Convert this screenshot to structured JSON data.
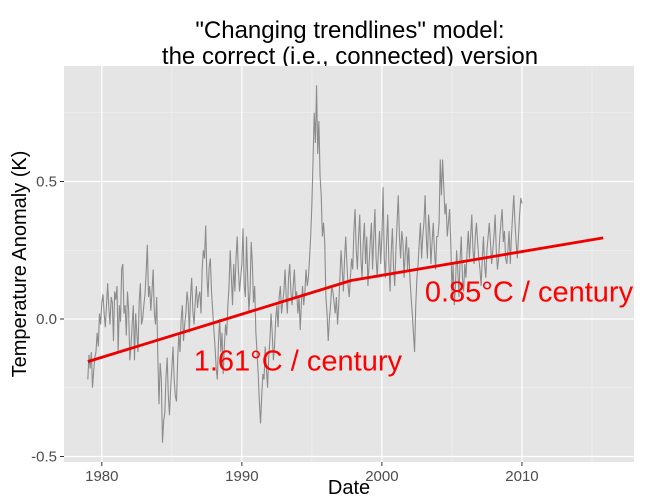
{
  "colors": {
    "panel_background": "#e5e5e5",
    "grid_major": "#ffffff",
    "grid_minor": "#f2f2f2",
    "series_line": "#8c8c8c",
    "trend_line": "#ee0000",
    "annotation_text": "#ff0000"
  },
  "chart_data": {
    "type": "line",
    "title_line1": "\"Changing trendlines\" model:",
    "title_line2": "the correct (i.e., connected) version",
    "xlabel": "Date",
    "ylabel": "Temperature Anomaly (K)",
    "xlim": [
      1977.3,
      2018.0
    ],
    "ylim": [
      -0.52,
      0.92
    ],
    "x_ticks": [
      1980,
      1990,
      2000,
      2010
    ],
    "x_tick_labels": [
      "1980",
      "1990",
      "2000",
      "2010"
    ],
    "y_ticks": [
      -0.5,
      0.0,
      0.5
    ],
    "y_tick_labels": [
      "-0.5",
      "0.0",
      "0.5"
    ],
    "grid": true,
    "series": [
      {
        "values_description_free": true,
        "x_start": 1979.0,
        "x_step": 0.0833333,
        "values": [
          -0.22,
          -0.13,
          -0.18,
          -0.12,
          -0.25,
          -0.19,
          -0.14,
          -0.12,
          -0.05,
          -0.1,
          0.02,
          -0.02,
          0.06,
          0.09,
          0.02,
          -0.03,
          0.05,
          0.13,
          0.04,
          -0.02,
          0.08,
          0.06,
          -0.08,
          0.1,
          0.07,
          0.12,
          -0.12,
          0.05,
          -0.01,
          0.18,
          0.2,
          0.02,
          0.05,
          -0.06,
          0.1,
          0.03,
          -0.15,
          -0.1,
          -0.02,
          0.05,
          -0.15,
          0.02,
          -0.05,
          -0.12,
          0.06,
          0.13,
          -0.02,
          0.0,
          0.05,
          0.09,
          0.17,
          0.27,
          0.08,
          0.12,
          0.03,
          0.1,
          0.18,
          0.02,
          -0.02,
          0.08,
          -0.14,
          -0.31,
          -0.16,
          -0.22,
          -0.45,
          -0.37,
          -0.34,
          -0.21,
          -0.14,
          -0.28,
          -0.35,
          -0.25,
          -0.18,
          -0.1,
          -0.22,
          -0.28,
          -0.3,
          -0.15,
          -0.05,
          -0.12,
          0.0,
          0.05,
          -0.08,
          -0.02,
          0.02,
          0.1,
          0.06,
          -0.05,
          0.08,
          0.15,
          0.03,
          -0.02,
          0.06,
          0.12,
          0.04,
          0.08,
          0.1,
          0.02,
          0.18,
          0.25,
          0.22,
          0.34,
          0.16,
          0.08,
          0.19,
          0.22,
          0.1,
          0.03,
          -0.04,
          -0.1,
          -0.18,
          -0.22,
          -0.08,
          0.0,
          -0.12,
          -0.05,
          -0.2,
          -0.1,
          -0.02,
          -0.06,
          0.05,
          0.12,
          0.25,
          0.15,
          0.05,
          0.2,
          0.1,
          0.22,
          0.3,
          0.18,
          0.1,
          0.15,
          0.2,
          0.33,
          0.12,
          0.08,
          0.3,
          0.15,
          0.03,
          0.1,
          0.28,
          0.2,
          0.06,
          0.12,
          -0.05,
          -0.12,
          -0.2,
          -0.3,
          -0.38,
          -0.28,
          -0.2,
          -0.22,
          -0.1,
          -0.18,
          -0.25,
          -0.14,
          -0.08,
          0.02,
          -0.05,
          -0.15,
          -0.1,
          0.0,
          0.05,
          -0.03,
          0.08,
          0.12,
          0.02,
          0.06,
          0.1,
          0.18,
          0.08,
          0.02,
          0.15,
          0.2,
          0.1,
          0.05,
          0.12,
          0.18,
          0.08,
          0.1,
          0.02,
          0.08,
          -0.04,
          0.06,
          0.12,
          0.05,
          0.1,
          0.18,
          0.12,
          0.15,
          0.22,
          0.3,
          0.42,
          0.58,
          0.75,
          0.64,
          0.85,
          0.6,
          0.72,
          0.52,
          0.45,
          0.3,
          0.35,
          0.28,
          0.08,
          0.02,
          -0.08,
          0.0,
          0.05,
          0.12,
          0.1,
          0.06,
          0.02,
          0.08,
          -0.02,
          0.05,
          0.15,
          0.25,
          0.18,
          0.1,
          0.22,
          0.3,
          0.2,
          0.12,
          0.08,
          0.15,
          0.22,
          0.18,
          0.32,
          0.4,
          0.25,
          0.18,
          0.3,
          0.38,
          0.22,
          0.15,
          0.28,
          0.35,
          0.2,
          0.3,
          0.12,
          0.2,
          0.28,
          0.35,
          0.18,
          0.3,
          0.4,
          0.22,
          0.15,
          0.25,
          0.32,
          0.2,
          0.3,
          0.48,
          0.22,
          0.15,
          0.28,
          0.38,
          0.2,
          0.1,
          0.25,
          0.33,
          0.18,
          0.12,
          0.25,
          0.35,
          0.45,
          0.3,
          0.22,
          0.32,
          0.28,
          0.15,
          0.24,
          0.3,
          0.18,
          0.26,
          0.15,
          0.08,
          0.02,
          -0.05,
          -0.12,
          0.05,
          0.15,
          0.2,
          0.28,
          0.35,
          0.22,
          0.3,
          0.35,
          0.45,
          0.3,
          0.22,
          0.38,
          0.32,
          0.2,
          0.28,
          0.35,
          0.25,
          0.18,
          0.3,
          0.3,
          0.35,
          0.58,
          0.45,
          0.58,
          0.48,
          0.38,
          0.42,
          0.3,
          0.35,
          0.4,
          0.28,
          0.1,
          0.2,
          0.05,
          0.12,
          0.25,
          0.18,
          0.08,
          0.22,
          0.3,
          0.15,
          0.1,
          0.2,
          0.15,
          0.25,
          0.32,
          0.22,
          0.3,
          0.38,
          0.25,
          0.2,
          0.3,
          0.35,
          0.28,
          0.22,
          0.18,
          0.12,
          0.22,
          0.3,
          0.2,
          0.15,
          0.25,
          0.3,
          0.35,
          0.28,
          0.2,
          0.25,
          0.3,
          0.38,
          0.25,
          0.18,
          0.22,
          0.3,
          0.35,
          0.4,
          0.28,
          0.32,
          0.22,
          0.2,
          0.25,
          0.32,
          0.2,
          0.3,
          0.38,
          0.45,
          0.35,
          0.28,
          0.22,
          0.3,
          0.38,
          0.44,
          0.42
        ]
      },
      {
        "x": [
          1979.0,
          1997.8,
          2015.8
        ],
        "values": [
          -0.155,
          0.14,
          0.295
        ]
      }
    ],
    "annotations": [
      {
        "text": "1.61°C / century",
        "x": 1994.0,
        "y": -0.15
      },
      {
        "text": "0.85°C / century",
        "x": 2010.5,
        "y": 0.1
      }
    ]
  }
}
